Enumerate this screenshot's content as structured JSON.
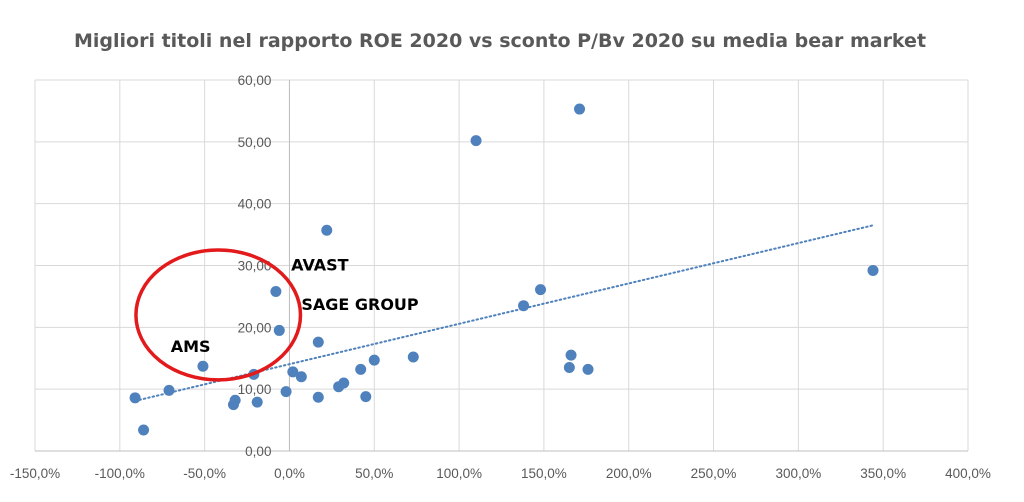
{
  "chart_data": {
    "type": "scatter",
    "title": "Migliori titoli nel rapporto ROE 2020 vs sconto P/Bv 2020 su media bear market",
    "xlabel": "",
    "ylabel": "",
    "xlim": [
      -150,
      400
    ],
    "ylim": [
      0,
      60
    ],
    "x_ticks": [
      -150,
      -100,
      -50,
      0,
      50,
      100,
      150,
      200,
      250,
      300,
      350,
      400
    ],
    "x_tick_labels": [
      "-150,0%",
      "-100,0%",
      "-50,0%",
      "0,0%",
      "50,0%",
      "100,0%",
      "150,0%",
      "200,0%",
      "250,0%",
      "300,0%",
      "350,0%",
      "400,0%"
    ],
    "y_ticks": [
      0,
      10,
      20,
      30,
      40,
      50,
      60
    ],
    "y_tick_labels": [
      "0,00",
      "10,00",
      "20,00",
      "30,00",
      "40,00",
      "50,00",
      "60,00"
    ],
    "grid": true,
    "marker_color": "#4f81bd",
    "points": [
      {
        "x": -91,
        "y": 8.6
      },
      {
        "x": -86,
        "y": 3.4
      },
      {
        "x": -71,
        "y": 9.8
      },
      {
        "x": -51,
        "y": 13.7
      },
      {
        "x": -33,
        "y": 7.5
      },
      {
        "x": -32,
        "y": 8.2
      },
      {
        "x": -21,
        "y": 12.4
      },
      {
        "x": -19,
        "y": 7.9
      },
      {
        "x": -8,
        "y": 25.8
      },
      {
        "x": -6,
        "y": 19.5
      },
      {
        "x": -2,
        "y": 9.6
      },
      {
        "x": 2,
        "y": 12.8
      },
      {
        "x": 7,
        "y": 12.0
      },
      {
        "x": 17,
        "y": 8.7
      },
      {
        "x": 17,
        "y": 17.6
      },
      {
        "x": 22,
        "y": 35.7
      },
      {
        "x": 29,
        "y": 10.4
      },
      {
        "x": 32,
        "y": 11.0
      },
      {
        "x": 42,
        "y": 13.2
      },
      {
        "x": 45,
        "y": 8.8
      },
      {
        "x": 50,
        "y": 14.7
      },
      {
        "x": 73,
        "y": 15.2
      },
      {
        "x": 110,
        "y": 50.2
      },
      {
        "x": 138,
        "y": 23.5
      },
      {
        "x": 148,
        "y": 26.1
      },
      {
        "x": 165,
        "y": 13.5
      },
      {
        "x": 166,
        "y": 15.5
      },
      {
        "x": 171,
        "y": 55.3
      },
      {
        "x": 176,
        "y": 13.2
      },
      {
        "x": 344,
        "y": 29.2
      }
    ],
    "trendline": {
      "style": "dotted",
      "color": "#4f81bd",
      "from": {
        "x": -91,
        "y": 8.1
      },
      "to": {
        "x": 344,
        "y": 36.5
      }
    },
    "annotations": [
      {
        "text": "AVAST",
        "x": 1,
        "y": 29.2
      },
      {
        "text": "SAGE GROUP",
        "x": 7,
        "y": 22.8
      },
      {
        "text": "AMS",
        "x": -70,
        "y": 16.0
      }
    ],
    "highlight_ellipse": {
      "color": "#e31a1c",
      "center": {
        "x": -42,
        "y": 22.0
      },
      "rx": 48.5,
      "ry": 10.5
    }
  }
}
